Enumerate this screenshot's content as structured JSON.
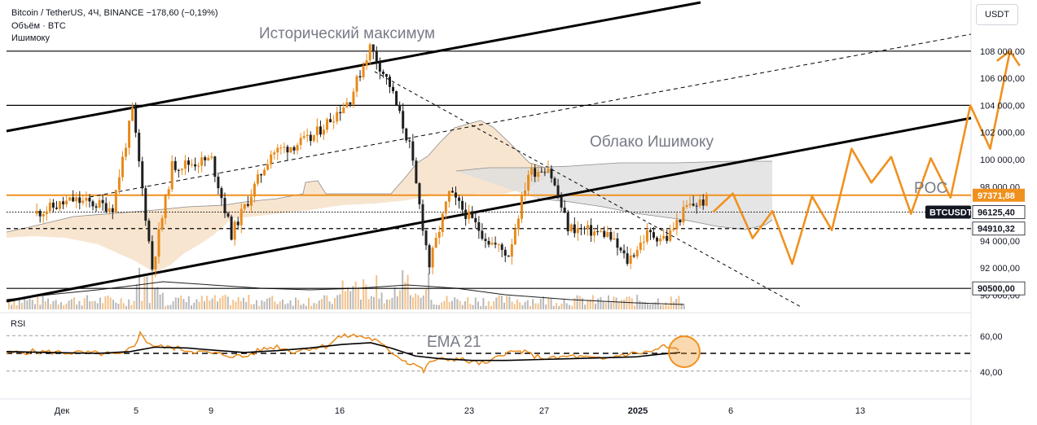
{
  "header": {
    "symbol": "Bitcoin / TetherUS, 4Ч, BINANCE",
    "change": "−178,60 (−0,19%)",
    "volume_label": "Объём · BTC",
    "indicator_label": "Ишимоку"
  },
  "currency_button": "USDT",
  "rsi_label": "RSI",
  "annotations": {
    "ath": "Исторический максимум",
    "cloud": "Облако Ишимоку",
    "poc": "POC",
    "ema": "EMA 21"
  },
  "colors": {
    "candle": "#e88a1a",
    "candle_dark": "#1e1e1e",
    "poc": "#f0911f",
    "cloud_fill": "#f6dcc0",
    "cloud_fill_grey": "#dcdcde",
    "trend": "#000000",
    "rsi_line": "#e88a1a"
  },
  "chart_data": {
    "type": "candlestick",
    "title": "Bitcoin / TetherUS, 4Ч, BINANCE",
    "y_axis": {
      "range": [
        89500,
        110000
      ],
      "ticks": [
        "108 000,00",
        "106 000,00",
        "104 000,00",
        "102 000,00",
        "100 000,00",
        "98 000,00",
        "96 000,00",
        "94 000,00",
        "92 000,00",
        "90 000,00"
      ],
      "price_labels": [
        {
          "label": "97371,88",
          "value": 97371.88,
          "style": "orange"
        },
        {
          "label": "BTCUSDT",
          "style": "dark-tag"
        },
        {
          "label": "96125,40",
          "value": 96125.4,
          "style": "white"
        },
        {
          "label": "94910,32",
          "value": 94910.32,
          "style": "white"
        },
        {
          "label": "90500,00",
          "value": 90500,
          "style": "white"
        }
      ]
    },
    "x_axis": {
      "ticks": [
        "Дек",
        "5",
        "9",
        "16",
        "23",
        "27",
        "2025",
        "6",
        "13"
      ]
    },
    "horizontal_levels": [
      {
        "value": 108000,
        "style": "solid"
      },
      {
        "value": 104000,
        "style": "solid"
      },
      {
        "value": 97371.88,
        "style": "poc"
      },
      {
        "value": 96125.4,
        "style": "dotted"
      },
      {
        "value": 94910.32,
        "style": "dashed"
      },
      {
        "value": 90500,
        "style": "solid"
      }
    ],
    "approx_price_path": [
      {
        "t": "Nov 30",
        "price": 96000
      },
      {
        "t": "Dec 2",
        "price": 97000
      },
      {
        "t": "Dec 4",
        "price": 96500
      },
      {
        "t": "Dec 5",
        "price": 103600
      },
      {
        "t": "Dec 6",
        "price": 92000
      },
      {
        "t": "Dec 7",
        "price": 99500
      },
      {
        "t": "Dec 9",
        "price": 100000
      },
      {
        "t": "Dec 10",
        "price": 94500
      },
      {
        "t": "Dec 12",
        "price": 100500
      },
      {
        "t": "Dec 14",
        "price": 101500
      },
      {
        "t": "Dec 16",
        "price": 104500
      },
      {
        "t": "Dec 17",
        "price": 108300
      },
      {
        "t": "Dec 18",
        "price": 105500
      },
      {
        "t": "Dec 19",
        "price": 101000
      },
      {
        "t": "Dec 20",
        "price": 92200
      },
      {
        "t": "Dec 21",
        "price": 97500
      },
      {
        "t": "Dec 23",
        "price": 94000
      },
      {
        "t": "Dec 24",
        "price": 93000
      },
      {
        "t": "Dec 25",
        "price": 99000
      },
      {
        "t": "Dec 26",
        "price": 99500
      },
      {
        "t": "Dec 27",
        "price": 95000
      },
      {
        "t": "Dec 29",
        "price": 94500
      },
      {
        "t": "Dec 30",
        "price": 92500
      },
      {
        "t": "Dec 31",
        "price": 94500
      },
      {
        "t": "Jan 1",
        "price": 94200
      },
      {
        "t": "Jan 2",
        "price": 96500
      },
      {
        "t": "Jan 3",
        "price": 97000
      }
    ],
    "projection_path": [
      {
        "t": "Jan 3",
        "price": 96125
      },
      {
        "t": "Jan 4",
        "price": 97500
      },
      {
        "t": "Jan 5",
        "price": 94200
      },
      {
        "t": "Jan 6",
        "price": 96200
      },
      {
        "t": "Jan 7",
        "price": 92300
      },
      {
        "t": "Jan 8",
        "price": 97300
      },
      {
        "t": "Jan 9",
        "price": 94800
      },
      {
        "t": "Jan 10",
        "price": 100800
      },
      {
        "t": "Jan 11",
        "price": 98300
      },
      {
        "t": "Jan 12",
        "price": 100200
      },
      {
        "t": "Jan 13",
        "price": 96000
      },
      {
        "t": "Jan 14",
        "price": 100100
      },
      {
        "t": "Jan 15",
        "price": 97200
      },
      {
        "t": "Jan 16",
        "price": 104000
      },
      {
        "t": "Jan 17",
        "price": 100800
      },
      {
        "t": "Jan 18",
        "price": 108000
      }
    ],
    "rsi": {
      "ticks": [
        "60,00",
        "40,00"
      ],
      "range": [
        20,
        80
      ],
      "dashed_level": 50
    }
  }
}
